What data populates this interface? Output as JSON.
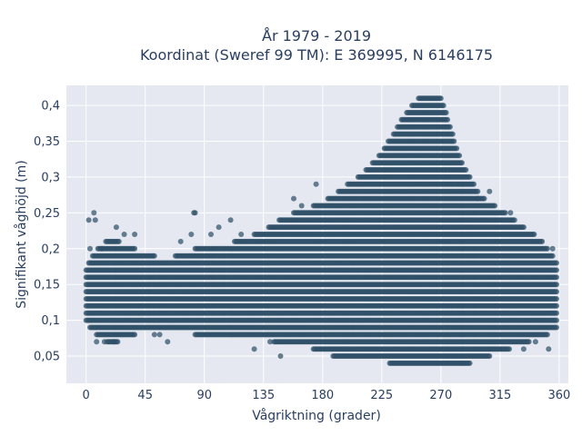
{
  "chart_data": {
    "type": "scatter",
    "title_line1": "År 1979 - 2019",
    "title_line2": "Koordinat (Sweref 99 TM): E 369995, N 6146175",
    "xlabel": "Vågriktning (grader)",
    "ylabel": "Signifikant våghöjd (m)",
    "xlim": [
      -15,
      367
    ],
    "ylim": [
      0.012,
      0.428
    ],
    "x_ticks": [
      0,
      45,
      90,
      135,
      180,
      225,
      270,
      315,
      360
    ],
    "x_tick_labels": [
      "0",
      "45",
      "90",
      "135",
      "180",
      "225",
      "270",
      "315",
      "360"
    ],
    "y_ticks": [
      0.05,
      0.1,
      0.15,
      0.2,
      0.25,
      0.3,
      0.35,
      0.4
    ],
    "y_tick_labels": [
      "0,05",
      "0,1",
      "0,15",
      "0,2",
      "0,25",
      "0,3",
      "0,35",
      "0,4"
    ],
    "grid": true,
    "colors": {
      "plot_bg": "#e5e8f1",
      "marker": "#2f5168",
      "text": "#2a3f5f"
    },
    "series": [
      {
        "x_step": 1,
        "y_step": 0.01,
        "envelope": [
          {
            "x": 0,
            "y_min": 0.1,
            "y_max": 0.17
          },
          {
            "x": 10,
            "y_min": 0.08,
            "y_max": 0.2
          },
          {
            "x": 20,
            "y_min": 0.07,
            "y_max": 0.21
          },
          {
            "x": 30,
            "y_min": 0.08,
            "y_max": 0.2
          },
          {
            "x": 45,
            "y_min": 0.09,
            "y_max": 0.19
          },
          {
            "x": 60,
            "y_min": 0.09,
            "y_max": 0.18
          },
          {
            "x": 75,
            "y_min": 0.09,
            "y_max": 0.19
          },
          {
            "x": 90,
            "y_min": 0.08,
            "y_max": 0.2
          },
          {
            "x": 105,
            "y_min": 0.08,
            "y_max": 0.2
          },
          {
            "x": 120,
            "y_min": 0.08,
            "y_max": 0.21
          },
          {
            "x": 135,
            "y_min": 0.08,
            "y_max": 0.22
          },
          {
            "x": 150,
            "y_min": 0.07,
            "y_max": 0.24
          },
          {
            "x": 165,
            "y_min": 0.07,
            "y_max": 0.25
          },
          {
            "x": 180,
            "y_min": 0.06,
            "y_max": 0.26
          },
          {
            "x": 195,
            "y_min": 0.05,
            "y_max": 0.28
          },
          {
            "x": 210,
            "y_min": 0.05,
            "y_max": 0.3
          },
          {
            "x": 225,
            "y_min": 0.05,
            "y_max": 0.33
          },
          {
            "x": 235,
            "y_min": 0.04,
            "y_max": 0.36
          },
          {
            "x": 245,
            "y_min": 0.04,
            "y_max": 0.39
          },
          {
            "x": 255,
            "y_min": 0.04,
            "y_max": 0.41
          },
          {
            "x": 265,
            "y_min": 0.04,
            "y_max": 0.41
          },
          {
            "x": 270,
            "y_min": 0.04,
            "y_max": 0.41
          },
          {
            "x": 275,
            "y_min": 0.04,
            "y_max": 0.38
          },
          {
            "x": 285,
            "y_min": 0.04,
            "y_max": 0.32
          },
          {
            "x": 300,
            "y_min": 0.05,
            "y_max": 0.27
          },
          {
            "x": 315,
            "y_min": 0.06,
            "y_max": 0.25
          },
          {
            "x": 330,
            "y_min": 0.07,
            "y_max": 0.23
          },
          {
            "x": 345,
            "y_min": 0.08,
            "y_max": 0.21
          },
          {
            "x": 358,
            "y_min": 0.09,
            "y_max": 0.18
          }
        ],
        "outliers": [
          [
            2,
            0.24
          ],
          [
            6,
            0.25
          ],
          [
            7,
            0.24
          ],
          [
            3,
            0.2
          ],
          [
            12,
            0.2
          ],
          [
            23,
            0.23
          ],
          [
            8,
            0.07
          ],
          [
            14,
            0.07
          ],
          [
            21,
            0.07
          ],
          [
            29,
            0.22
          ],
          [
            37,
            0.22
          ],
          [
            52,
            0.08
          ],
          [
            56,
            0.08
          ],
          [
            62,
            0.07
          ],
          [
            72,
            0.21
          ],
          [
            80,
            0.22
          ],
          [
            82,
            0.25
          ],
          [
            83,
            0.25
          ],
          [
            95,
            0.22
          ],
          [
            101,
            0.23
          ],
          [
            110,
            0.24
          ],
          [
            118,
            0.22
          ],
          [
            128,
            0.06
          ],
          [
            140,
            0.07
          ],
          [
            148,
            0.05
          ],
          [
            158,
            0.27
          ],
          [
            164,
            0.26
          ],
          [
            175,
            0.29
          ],
          [
            298,
            0.27
          ],
          [
            307,
            0.28
          ],
          [
            319,
            0.25
          ],
          [
            323,
            0.25
          ],
          [
            333,
            0.06
          ],
          [
            342,
            0.07
          ],
          [
            352,
            0.06
          ],
          [
            355,
            0.2
          ]
        ]
      }
    ]
  }
}
